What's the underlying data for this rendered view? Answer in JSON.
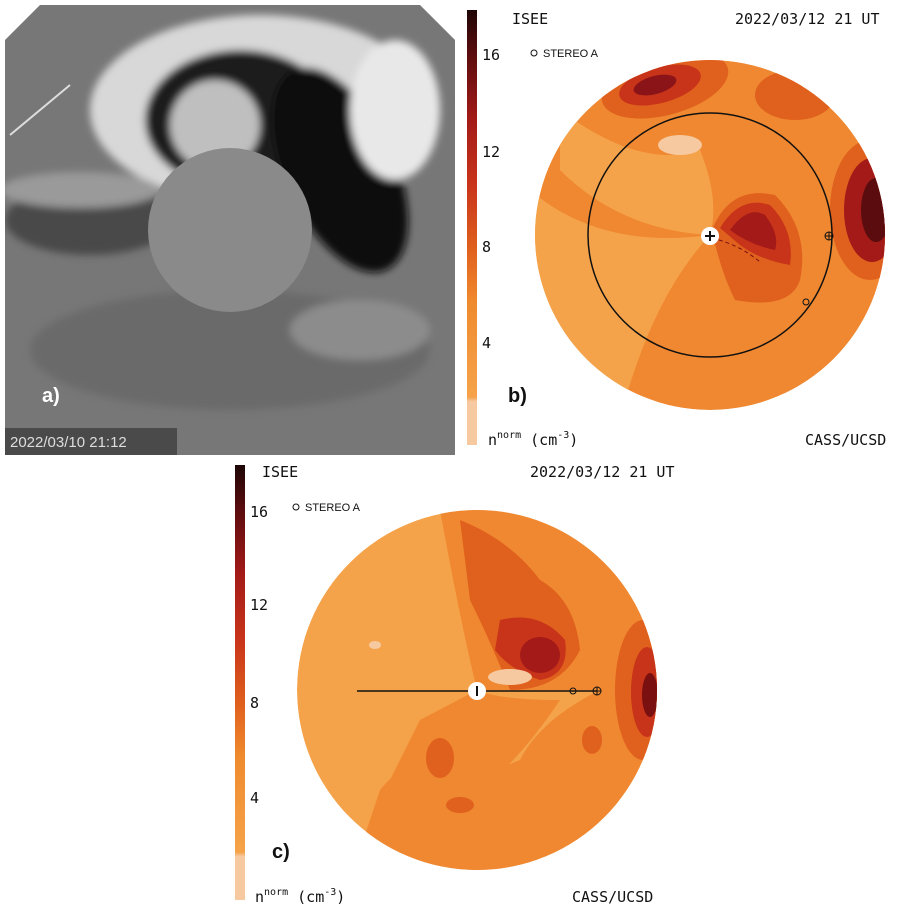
{
  "panels": [
    {
      "label": "a)",
      "timestamp": "2022/03/10 21:12"
    },
    {
      "label": "b)",
      "source": "ISEE",
      "date": "2022/03/12 21 UT",
      "legend": "STEREO A",
      "colorbar_ticks": [
        "4",
        "8",
        "12",
        "16"
      ],
      "unit": {
        "symbol": "n",
        "sup": "norm",
        "open": "(cm",
        "exp": "-3",
        "close": ")"
      },
      "credit": "CASS/UCSD"
    },
    {
      "label": "c)",
      "source": "ISEE",
      "date": "2022/03/12 21 UT",
      "legend": "STEREO A",
      "colorbar_ticks": [
        "4",
        "8",
        "12",
        "16"
      ],
      "unit": {
        "symbol": "n",
        "sup": "norm",
        "open": "(cm",
        "exp": "-3",
        "close": ")"
      },
      "credit": "CASS/UCSD"
    }
  ]
}
